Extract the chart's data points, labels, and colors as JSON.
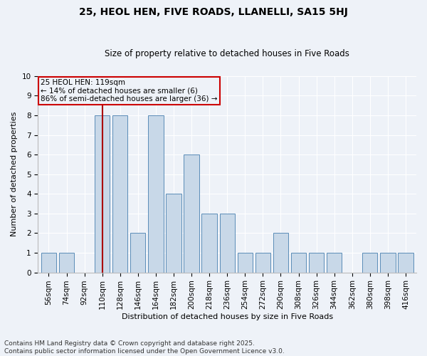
{
  "title1": "25, HEOL HEN, FIVE ROADS, LLANELLI, SA15 5HJ",
  "title2": "Size of property relative to detached houses in Five Roads",
  "xlabel": "Distribution of detached houses by size in Five Roads",
  "ylabel": "Number of detached properties",
  "categories": [
    "56sqm",
    "74sqm",
    "92sqm",
    "110sqm",
    "128sqm",
    "146sqm",
    "164sqm",
    "182sqm",
    "200sqm",
    "218sqm",
    "236sqm",
    "254sqm",
    "272sqm",
    "290sqm",
    "308sqm",
    "326sqm",
    "344sqm",
    "362sqm",
    "380sqm",
    "398sqm",
    "416sqm"
  ],
  "values": [
    1,
    1,
    0,
    8,
    8,
    2,
    8,
    4,
    6,
    3,
    3,
    1,
    1,
    2,
    1,
    1,
    1,
    0,
    1,
    1,
    1
  ],
  "bar_color": "#c8d8e8",
  "bar_edge_color": "#5b8db8",
  "subject_line_index": 3,
  "subject_line_color": "#aa0000",
  "annotation_text": "25 HEOL HEN: 119sqm\n← 14% of detached houses are smaller (6)\n86% of semi-detached houses are larger (36) →",
  "annotation_box_color": "#cc0000",
  "ylim": [
    0,
    10
  ],
  "yticks": [
    0,
    1,
    2,
    3,
    4,
    5,
    6,
    7,
    8,
    9,
    10
  ],
  "background_color": "#eef2f8",
  "grid_color": "#ffffff",
  "footnote": "Contains HM Land Registry data © Crown copyright and database right 2025.\nContains public sector information licensed under the Open Government Licence v3.0.",
  "title1_fontsize": 10,
  "title2_fontsize": 8.5,
  "xlabel_fontsize": 8,
  "ylabel_fontsize": 8,
  "tick_fontsize": 7.5,
  "annotation_fontsize": 7.5,
  "footnote_fontsize": 6.5
}
